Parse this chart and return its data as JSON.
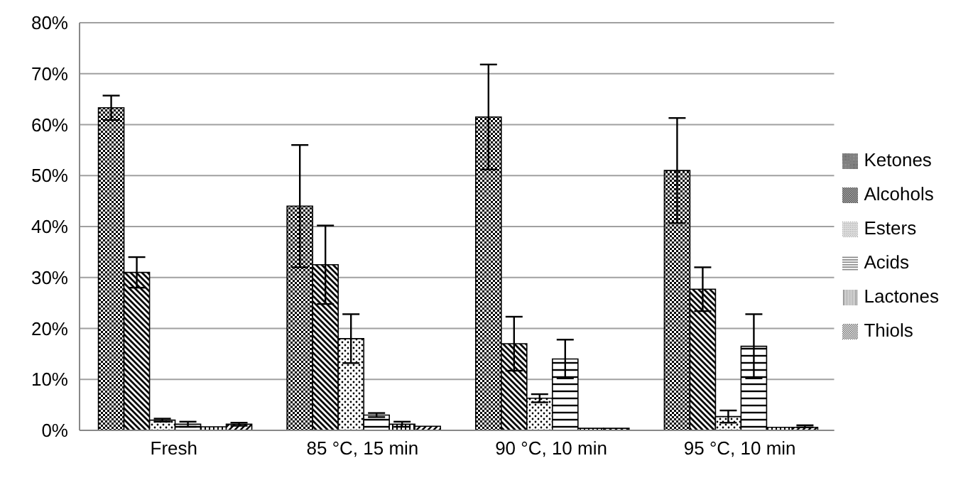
{
  "chart_data": {
    "type": "bar",
    "categories": [
      "Fresh",
      "85 °C, 15 min",
      "90 °C, 10 min",
      "95 °C, 10 min"
    ],
    "series": [
      {
        "name": "Ketones",
        "color": "#000000",
        "values": [
          63.3,
          44,
          61.5,
          51
        ],
        "errors": [
          2.4,
          12,
          10.3,
          10.3
        ]
      },
      {
        "name": "Alcohols",
        "color": "#000000",
        "values": [
          31,
          32.5,
          17,
          27.7
        ],
        "errors": [
          3,
          7.7,
          5.3,
          4.3
        ]
      },
      {
        "name": "Esters",
        "color": "#000000",
        "values": [
          2,
          18,
          6.3,
          2.7
        ],
        "errors": [
          0.3,
          4.8,
          0.8,
          1.2
        ]
      },
      {
        "name": "Acids",
        "color": "#000000",
        "values": [
          1.2,
          3,
          14,
          16.5
        ],
        "errors": [
          0.5,
          0.4,
          3.8,
          6.3
        ]
      },
      {
        "name": "Lactones",
        "color": "#000000",
        "values": [
          0.7,
          1.2,
          0.4,
          0.6
        ],
        "errors": [
          null,
          0.5,
          null,
          null
        ]
      },
      {
        "name": "Thiols",
        "color": "#000000",
        "values": [
          1.2,
          0.8,
          0.4,
          0.6
        ],
        "errors": [
          0.3,
          null,
          null,
          [
            0.6,
            1.0
          ]
        ]
      }
    ],
    "ylim": [
      0,
      80
    ],
    "yticks": [
      {
        "value": 0,
        "label": "0%"
      },
      {
        "value": 10,
        "label": "10%"
      },
      {
        "value": 20,
        "label": "20%"
      },
      {
        "value": 30,
        "label": "30%"
      },
      {
        "value": 40,
        "label": "40%"
      },
      {
        "value": 50,
        "label": "50%"
      },
      {
        "value": 60,
        "label": "60%"
      },
      {
        "value": 70,
        "label": "70%"
      },
      {
        "value": 80,
        "label": "80%"
      }
    ],
    "grid": "y",
    "legend": "right"
  }
}
